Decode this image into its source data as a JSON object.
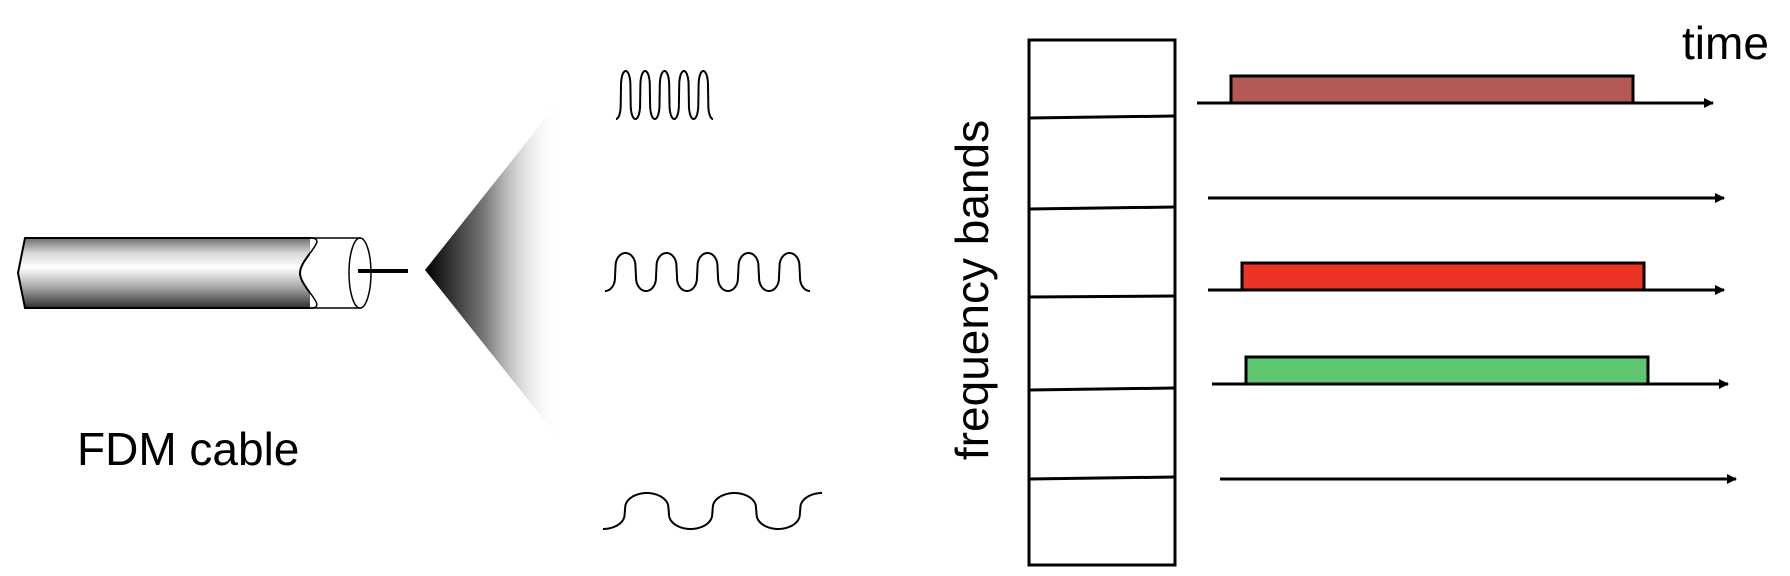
{
  "cable_label": "FDM cable",
  "axis_labels": {
    "frequency": "frequency bands",
    "time": "time"
  },
  "colors": {
    "band_1": "#b45a54",
    "band_3": "#ec3324",
    "band_4": "#5ec76f",
    "stroke": "#000000"
  },
  "waveforms": [
    {
      "name": "high-frequency"
    },
    {
      "name": "medium-frequency"
    },
    {
      "name": "low-frequency"
    }
  ],
  "bands": [
    {
      "occupied": true,
      "color": "#b45a54"
    },
    {
      "occupied": false
    },
    {
      "occupied": true,
      "color": "#ec3324"
    },
    {
      "occupied": true,
      "color": "#5ec76f"
    },
    {
      "occupied": false
    }
  ]
}
